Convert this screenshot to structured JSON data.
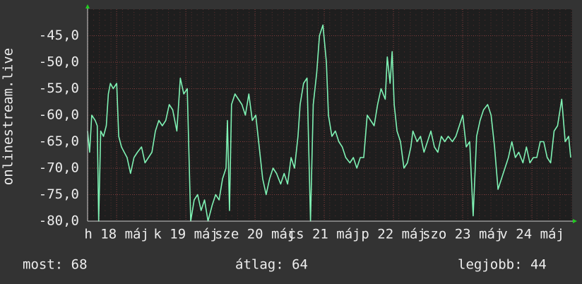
{
  "chart_data": {
    "type": "line",
    "ylabel": "onlinestream.live",
    "xlim": [
      0,
      7
    ],
    "ylim": [
      -80,
      -40
    ],
    "yticks": [
      {
        "value": -45,
        "label": "-45,0"
      },
      {
        "value": -50,
        "label": "-50,0"
      },
      {
        "value": -55,
        "label": "-55,0"
      },
      {
        "value": -60,
        "label": "-60,0"
      },
      {
        "value": -65,
        "label": "-65,0"
      },
      {
        "value": -70,
        "label": "-70,0"
      },
      {
        "value": -75,
        "label": "-75,0"
      },
      {
        "value": -80,
        "label": "-80,0"
      }
    ],
    "xticks": [
      {
        "value": 0.42,
        "label": "h 18 máj"
      },
      {
        "value": 1.42,
        "label": "k 19 máj"
      },
      {
        "value": 2.42,
        "label": "sze 20 máj"
      },
      {
        "value": 3.42,
        "label": "cs 21 máj"
      },
      {
        "value": 4.42,
        "label": "p 22 máj"
      },
      {
        "value": 5.42,
        "label": "szo 23 máj"
      },
      {
        "value": 6.42,
        "label": "v 24 máj"
      }
    ],
    "grid": true,
    "series": [
      {
        "color": "#7ff2b4",
        "x": [
          0,
          0.03,
          0.06,
          0.11,
          0.14,
          0.16,
          0.19,
          0.23,
          0.27,
          0.3,
          0.33,
          0.37,
          0.42,
          0.45,
          0.49,
          0.53,
          0.57,
          0.62,
          0.67,
          0.72,
          0.78,
          0.83,
          0.88,
          0.93,
          0.98,
          1.03,
          1.08,
          1.13,
          1.18,
          1.23,
          1.29,
          1.34,
          1.39,
          1.44,
          1.49,
          1.54,
          1.59,
          1.64,
          1.69,
          1.74,
          1.8,
          1.85,
          1.9,
          1.95,
          2.0,
          2.02,
          2.05,
          2.08,
          2.13,
          2.18,
          2.23,
          2.28,
          2.33,
          2.38,
          2.43,
          2.48,
          2.53,
          2.58,
          2.63,
          2.68,
          2.73,
          2.79,
          2.84,
          2.89,
          2.94,
          2.99,
          3.04,
          3.07,
          3.12,
          3.17,
          3.22,
          3.26,
          3.31,
          3.35,
          3.4,
          3.45,
          3.48,
          3.53,
          3.58,
          3.63,
          3.68,
          3.73,
          3.79,
          3.84,
          3.89,
          3.94,
          3.99,
          4.04,
          4.09,
          4.14,
          4.19,
          4.24,
          4.3,
          4.33,
          4.37,
          4.4,
          4.43,
          4.47,
          4.52,
          4.57,
          4.62,
          4.67,
          4.7,
          4.76,
          4.81,
          4.86,
          4.91,
          4.96,
          5.01,
          5.06,
          5.11,
          5.16,
          5.21,
          5.27,
          5.32,
          5.37,
          5.42,
          5.47,
          5.52,
          5.57,
          5.62,
          5.67,
          5.72,
          5.78,
          5.83,
          5.88,
          5.93,
          5.98,
          6.03,
          6.08,
          6.13,
          6.18,
          6.23,
          6.29,
          6.34,
          6.39,
          6.44,
          6.49,
          6.54,
          6.59,
          6.64,
          6.69,
          6.74,
          6.79,
          6.85,
          6.9,
          6.95,
          6.98
        ],
        "values": [
          -63,
          -67,
          -60,
          -61,
          -62,
          -80,
          -63,
          -64,
          -62,
          -56,
          -54,
          -55,
          -54,
          -64,
          -66,
          -67,
          -68,
          -71,
          -68,
          -67,
          -66,
          -69,
          -68,
          -67,
          -63,
          -61,
          -62,
          -61,
          -58,
          -59,
          -63,
          -53,
          -56,
          -55,
          -80,
          -76,
          -75,
          -78,
          -76,
          -80,
          -77,
          -75,
          -76,
          -72,
          -70,
          -61,
          -78,
          -58,
          -56,
          -57,
          -58,
          -60,
          -56,
          -61,
          -60,
          -66,
          -72,
          -75,
          -72,
          -70,
          -71,
          -73,
          -71,
          -73,
          -68,
          -70,
          -64,
          -58,
          -54,
          -53,
          -80,
          -58,
          -52,
          -45,
          -43,
          -50,
          -60,
          -64,
          -63,
          -65,
          -66,
          -68,
          -69,
          -68,
          -70,
          -68,
          -68,
          -60,
          -61,
          -62,
          -58,
          -55,
          -57,
          -49,
          -54,
          -48,
          -58,
          -63,
          -65,
          -70,
          -69,
          -66,
          -63,
          -65,
          -64,
          -67,
          -65,
          -63,
          -66,
          -67,
          -64,
          -65,
          -64,
          -65,
          -64,
          -62,
          -60,
          -66,
          -65,
          -79,
          -64,
          -61,
          -59,
          -58,
          -60,
          -66,
          -74,
          -72,
          -70,
          -68,
          -65,
          -68,
          -67,
          -69,
          -66,
          -69,
          -68,
          -68,
          -65,
          -65,
          -68,
          -69,
          -63,
          -62,
          -57,
          -65,
          -64,
          -68
        ]
      }
    ]
  },
  "footer": {
    "current": "most: 68",
    "average": "átlag: 64",
    "best": "legjobb: 44"
  }
}
